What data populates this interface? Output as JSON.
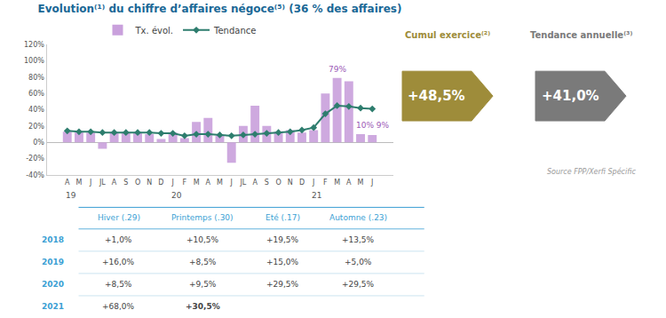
{
  "chart_data": {
    "type": "bar",
    "title": "Evolution⁽¹⁾ du chiffre d’affaires négoce⁽⁵⁾ (36 % des affaires)",
    "title_color": "#1a6896",
    "categories": [
      "A",
      "M",
      "J",
      "JL",
      "A",
      "S",
      "O",
      "N",
      "D",
      "J",
      "F",
      "M",
      "A",
      "M",
      "J",
      "JL",
      "A",
      "S",
      "O",
      "N",
      "D",
      "J",
      "F",
      "M",
      "A",
      "M",
      "J"
    ],
    "series": [
      {
        "name": "Tx. évol.",
        "type": "bar",
        "color": "#c9a0dc",
        "values": [
          13,
          13,
          12,
          -8,
          12,
          12,
          12,
          10,
          4,
          12,
          5,
          25,
          30,
          8,
          -25,
          20,
          45,
          20,
          13,
          15,
          12,
          15,
          60,
          79,
          75,
          10,
          9
        ]
      },
      {
        "name": "Tendance",
        "type": "line",
        "color": "#2e7d6e",
        "marker": "diamond",
        "values": [
          14,
          13,
          13,
          12,
          12,
          12,
          12,
          12,
          11,
          11,
          8,
          10,
          10,
          9,
          8,
          9,
          10,
          11,
          12,
          13,
          15,
          18,
          35,
          45,
          44,
          42,
          41
        ]
      }
    ],
    "ylim": [
      -40,
      120
    ],
    "yticks": [
      {
        "value": -40,
        "label": "-40%"
      },
      {
        "value": -20,
        "label": "-20%"
      },
      {
        "value": 0,
        "label": "0%"
      },
      {
        "value": 20,
        "label": "20%"
      },
      {
        "value": 40,
        "label": "40%"
      },
      {
        "value": 60,
        "label": "60%"
      },
      {
        "value": 80,
        "label": "80%"
      },
      {
        "value": 100,
        "label": "100%"
      },
      {
        "value": 120,
        "label": "120%"
      }
    ],
    "grid": false,
    "legend": "upper left",
    "year_labels": [
      {
        "label": "19",
        "x": 0
      },
      {
        "label": "20",
        "x": 9
      },
      {
        "label": "21",
        "x": 21
      }
    ],
    "annotations": [
      {
        "text": "79%",
        "x": 23,
        "y": 82,
        "color": "#9b59b6"
      },
      {
        "text": "10% 9%",
        "x": 25,
        "y": 13,
        "color": "#9b59b6"
      }
    ],
    "indicators": [
      {
        "label": "Cumul exercice⁽²⁾",
        "value": "+48,5%",
        "color": "#9e8c3a"
      },
      {
        "label": "Tendance annuelle⁽³⁾",
        "value": "+41,0%",
        "color": "#7a7a7a"
      }
    ],
    "source": "Source FPP/Xerfi Spécific",
    "table": {
      "headers": [
        "Hiver (.29)",
        "Printemps (.30)",
        "Eté (.17)",
        "Automne (.23)"
      ],
      "rows": [
        [
          "2018",
          "+1,0%",
          "+10,5%",
          "+19,5%",
          "+13,5%"
        ],
        [
          "2019",
          "+16,0%",
          "+8,5%",
          "+15,0%",
          "+5,0%"
        ],
        [
          "2020",
          "+8,5%",
          "+9,5%",
          "+29,5%",
          "+29,5%"
        ],
        [
          "2021",
          "+68,0%",
          "+30,5%",
          null,
          null
        ]
      ],
      "color": "#3b9fd4",
      "bold_cell": {
        "row": 3,
        "column": 2
      }
    }
  }
}
